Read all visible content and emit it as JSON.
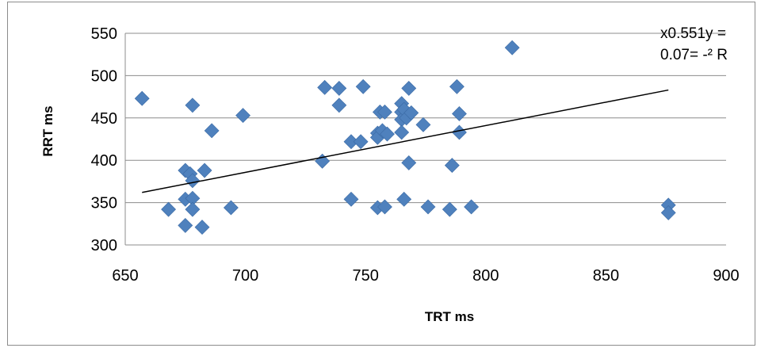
{
  "chart_data": {
    "type": "scatter",
    "xlabel": "TRT ms",
    "ylabel": "RRT ms",
    "xlim": [
      650,
      900
    ],
    "ylim": [
      300,
      550
    ],
    "x_ticks": [
      "650",
      "700",
      "750",
      "800",
      "850",
      "900"
    ],
    "y_ticks": [
      "300",
      "350",
      "400",
      "450",
      "500",
      "550"
    ],
    "grid": "horizontal",
    "marker_color": "#4f81bd",
    "trendline_color": "#000000",
    "annotation": {
      "line1": "x0.551y =",
      "line2": "0.07= -² R"
    },
    "trendline": {
      "x": [
        657,
        876
      ],
      "y": [
        362,
        483
      ]
    },
    "series": [
      {
        "x": [
          657,
          668,
          675,
          675,
          675,
          677,
          678,
          678,
          678,
          678,
          682,
          683,
          686,
          694,
          699,
          732,
          733,
          739,
          739,
          744,
          744,
          748,
          749,
          755,
          755,
          755,
          756,
          757,
          758,
          758,
          759,
          765,
          765,
          765,
          765,
          766,
          766,
          767,
          768,
          768,
          769,
          774,
          776,
          785,
          786,
          788,
          789,
          789,
          794,
          811,
          876,
          876
        ],
        "y": [
          473,
          342,
          388,
          354,
          323,
          384,
          465,
          376,
          355,
          342,
          321,
          388,
          435,
          344,
          453,
          399,
          486,
          485,
          465,
          422,
          354,
          422,
          487,
          344,
          432,
          427,
          457,
          435,
          457,
          345,
          431,
          467,
          457,
          448,
          433,
          460,
          354,
          450,
          485,
          397,
          456,
          442,
          345,
          342,
          394,
          487,
          455,
          433,
          345,
          533,
          347,
          338
        ]
      }
    ]
  }
}
